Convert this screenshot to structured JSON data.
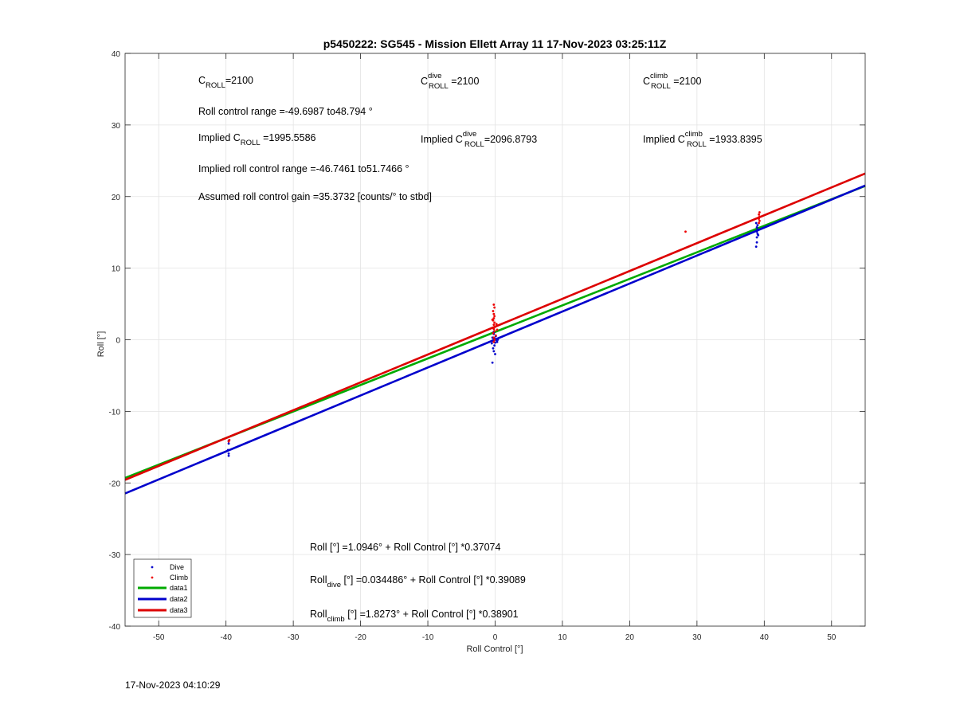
{
  "chart_data": {
    "type": "scatter",
    "title": "p5450222: SG545 - Mission Ellett Array 11 17-Nov-2023 03:25:11Z",
    "xlabel": "Roll Control [°]",
    "ylabel": "Roll [°]",
    "xlim": [
      -55,
      55
    ],
    "ylim": [
      -40,
      40
    ],
    "xticks": [
      -50,
      -40,
      -30,
      -20,
      -10,
      0,
      10,
      20,
      30,
      40,
      50
    ],
    "yticks": [
      -40,
      -30,
      -20,
      -10,
      0,
      10,
      20,
      30,
      40
    ],
    "grid": true,
    "legend_position": "bottom-left",
    "series": [
      {
        "name": "Dive",
        "kind": "points",
        "color": "#0000cc",
        "points": [
          [
            -39.6,
            -14.1
          ],
          [
            -39.6,
            -14.5
          ],
          [
            -39.7,
            -15.4
          ],
          [
            -39.6,
            -15.9
          ],
          [
            -39.6,
            -16.2
          ],
          [
            -0.3,
            -0.2
          ],
          [
            -0.2,
            0.1
          ],
          [
            -0.4,
            0.3
          ],
          [
            0.0,
            -0.4
          ],
          [
            -0.1,
            -0.8
          ],
          [
            -0.3,
            -1.2
          ],
          [
            -0.2,
            -1.6
          ],
          [
            -0.4,
            -3.2
          ],
          [
            0.1,
            0.5
          ],
          [
            -0.2,
            0.8
          ],
          [
            0.2,
            -0.1
          ],
          [
            -0.1,
            0.2
          ],
          [
            0.4,
            0.0
          ],
          [
            -0.5,
            -0.5
          ],
          [
            0.3,
            -0.3
          ],
          [
            -0.2,
            1.1
          ],
          [
            0.0,
            -2.0
          ],
          [
            38.8,
            13.0
          ],
          [
            38.9,
            13.6
          ],
          [
            38.9,
            14.3
          ],
          [
            39.0,
            14.8
          ],
          [
            38.9,
            15.1
          ],
          [
            39.0,
            15.4
          ],
          [
            38.9,
            15.7
          ],
          [
            39.0,
            16.0
          ],
          [
            38.8,
            16.3
          ],
          [
            39.1,
            14.6
          ]
        ]
      },
      {
        "name": "Climb",
        "kind": "points",
        "color": "#ee0000",
        "points": [
          [
            -39.6,
            -14.2
          ],
          [
            -39.5,
            -14.0
          ],
          [
            -0.2,
            4.9
          ],
          [
            -0.1,
            4.5
          ],
          [
            -0.3,
            4.0
          ],
          [
            -0.2,
            3.6
          ],
          [
            -0.1,
            3.3
          ],
          [
            -0.2,
            3.0
          ],
          [
            -0.3,
            2.7
          ],
          [
            -0.1,
            2.4
          ],
          [
            -0.2,
            2.1
          ],
          [
            0.0,
            1.8
          ],
          [
            -0.2,
            1.5
          ],
          [
            -0.1,
            1.2
          ],
          [
            -0.3,
            0.9
          ],
          [
            0.1,
            0.6
          ],
          [
            -0.2,
            0.3
          ],
          [
            -0.1,
            0.0
          ],
          [
            -0.2,
            -0.3
          ],
          [
            0.2,
            2.2
          ],
          [
            -0.4,
            2.8
          ],
          [
            0.3,
            1.4
          ],
          [
            28.3,
            15.1
          ],
          [
            39.2,
            16.3
          ],
          [
            39.3,
            16.6
          ],
          [
            39.2,
            16.9
          ],
          [
            39.3,
            17.2
          ],
          [
            39.2,
            17.5
          ],
          [
            39.3,
            17.8
          ]
        ]
      },
      {
        "name": "data1",
        "kind": "line",
        "color": "#00aa00",
        "intercept": 1.0946,
        "slope": 0.37074
      },
      {
        "name": "data2",
        "kind": "line",
        "color": "#0000cc",
        "intercept": 0.034486,
        "slope": 0.39089
      },
      {
        "name": "data3",
        "kind": "line",
        "color": "#dd0000",
        "intercept": 1.8273,
        "slope": 0.38901
      }
    ]
  },
  "annotations": {
    "c_roll": {
      "base": "C",
      "sub": "ROLL",
      "value": "=2100"
    },
    "c_roll_dive": {
      "base": "C",
      "sup": "dive",
      "sub": "ROLL",
      "value": " =2100"
    },
    "c_roll_climb": {
      "base": "C",
      "sup": "climb",
      "sub": "ROLL",
      "value": " =2100"
    },
    "roll_control_range": "Roll control range =-49.6987 to48.794 °",
    "implied_c_roll": {
      "prefix": "Implied C",
      "sub": "ROLL",
      "value": " =1995.5586"
    },
    "implied_c_roll_dive": {
      "prefix": "Implied C",
      "sup": "dive",
      "sub": "ROLL",
      "value": "=2096.8793"
    },
    "implied_c_roll_climb": {
      "prefix": "Implied C",
      "sup": "climb",
      "sub": "ROLL",
      "value": " =1933.8395"
    },
    "implied_range": "Implied roll control range =-46.7461 to51.7466 °",
    "gain": "Assumed roll control gain =35.3732 [counts/° to stbd]",
    "fit_all": "Roll [°] =1.0946° + Roll Control [°] *0.37074",
    "fit_dive": {
      "prefix": "Roll",
      "sub": "dive",
      "rest": " [°] =0.034486° + Roll Control [°] *0.39089"
    },
    "fit_climb": {
      "prefix": "Roll",
      "sub": "climb",
      "rest": " [°] =1.8273° + Roll Control [°] *0.38901"
    }
  },
  "footer_timestamp": "17-Nov-2023 04:10:29"
}
